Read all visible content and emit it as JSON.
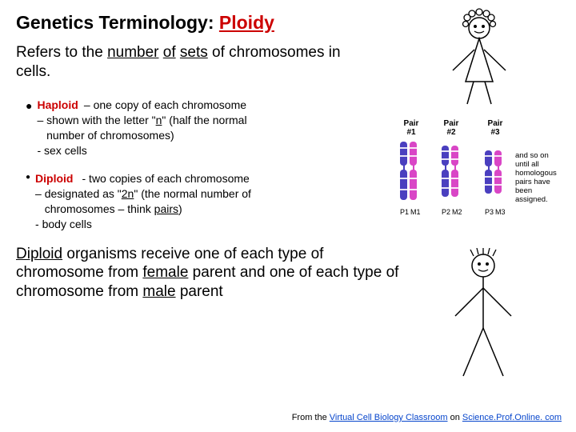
{
  "title_prefix": "Genetics Terminology: ",
  "title_accent": "Ploidy",
  "refers_html": "Refers to the <span class='u'>number</span> <span class='u'>of</span> <span class='u'>sets</span>  of chromosomes in cells.",
  "bullets": [
    {
      "term": "Haploid",
      "desc_html": "– one copy of each chromosome<br>– shown with the letter \"<span class='u'>n</span>\" (half the normal<br>&nbsp;&nbsp; number of chromosomes)<br>- sex cells"
    },
    {
      "term": "Diploid",
      "desc_html": "- two copies of each chromosome<br>– designated as \"<span class='u'>2n</span>\" (the normal number of<br>&nbsp;&nbsp; chromosomes – think <span class='u'>pairs</span>)<br>- body cells"
    }
  ],
  "summary_html": "<span class='u'>Diploid</span> organisms receive one of each type of chromosome from <span class='u'>female</span> parent and one of each type of chromosome from <span class='u'>male</span> parent",
  "footer_prefix": "From the ",
  "footer_link1": "Virtual Cell Biology Classroom",
  "footer_mid": " on ",
  "footer_link2": "Science.Prof.Online. com",
  "chrom": {
    "pair_labels": [
      "Pair\n#1",
      "Pair\n#2",
      "Pair\n#3"
    ],
    "pm_labels": [
      "P1",
      "M1",
      "P2",
      "M2",
      "P3",
      "M3"
    ],
    "colors": {
      "p": "#4a3fbf",
      "m": "#d946c6"
    },
    "side_note": "and so on until all homologous pairs have been assigned."
  }
}
